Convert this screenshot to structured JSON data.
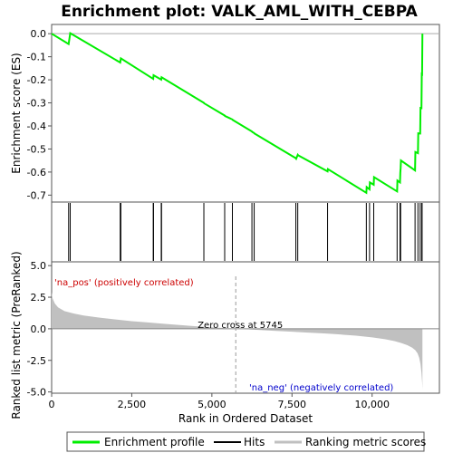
{
  "chart_data": {
    "type": "line",
    "title": "Enrichment plot: VALK_AML_WITH_CEBPA",
    "top_panel": {
      "ylabel": "Enrichment score (ES)",
      "ylim": [
        -0.73,
        0.04
      ],
      "yticks": [
        0.0,
        -0.1,
        -0.2,
        -0.3,
        -0.4,
        -0.5,
        -0.6,
        -0.7
      ],
      "ytick_labels": [
        "0.0",
        "-0.1",
        "-0.2",
        "-0.3",
        "-0.4",
        "-0.5",
        "-0.6",
        "-0.7"
      ],
      "series_color": "#00ee00",
      "es_profile": {
        "x": [
          0,
          530,
          580,
          2140,
          2160,
          3170,
          3180,
          3420,
          3430,
          4750,
          4760,
          5400,
          5410,
          5640,
          5650,
          6250,
          6260,
          6320,
          6330,
          7620,
          7630,
          7680,
          7690,
          8610,
          8620,
          9820,
          9830,
          9920,
          9930,
          10050,
          10060,
          10780,
          10790,
          10870,
          10880,
          10890,
          10900,
          11340,
          11350,
          11430,
          11440,
          11500,
          11510,
          11540,
          11550,
          11560,
          11570
        ],
        "y": [
          0.0,
          -0.045,
          0.002,
          -0.125,
          -0.107,
          -0.196,
          -0.18,
          -0.199,
          -0.189,
          -0.3,
          -0.302,
          -0.355,
          -0.357,
          -0.372,
          -0.374,
          -0.424,
          -0.426,
          -0.431,
          -0.433,
          -0.54,
          -0.542,
          -0.525,
          -0.527,
          -0.597,
          -0.587,
          -0.69,
          -0.665,
          -0.675,
          -0.645,
          -0.655,
          -0.622,
          -0.684,
          -0.637,
          -0.645,
          -0.603,
          -0.583,
          -0.55,
          -0.593,
          -0.513,
          -0.518,
          -0.432,
          -0.433,
          -0.322,
          -0.323,
          -0.175,
          -0.176,
          0.0
        ]
      }
    },
    "hits": [
      530,
      580,
      2140,
      2160,
      3170,
      3180,
      3420,
      3430,
      4750,
      5400,
      5640,
      6250,
      6320,
      7620,
      7680,
      8610,
      9820,
      9920,
      10050,
      10780,
      10870,
      10890,
      11340,
      11430,
      11500,
      11550,
      11560
    ],
    "color_bar": {
      "pos_label": "'na_pos' (positively correlated)",
      "neg_label": "'na_neg' (negatively correlated)",
      "segments": [
        {
          "x0": 0,
          "x1": 400,
          "color": "#ee1c2e"
        },
        {
          "x0": 400,
          "x1": 2150,
          "color": "#f24e5a"
        },
        {
          "x0": 2150,
          "x1": 3000,
          "color": "#f47a8a"
        },
        {
          "x0": 3000,
          "x1": 4100,
          "color": "#f8a2b2"
        },
        {
          "x0": 4100,
          "x1": 5600,
          "color": "#fbc6dc"
        },
        {
          "x0": 5600,
          "x1": 6400,
          "color": "#f3e7f3"
        },
        {
          "x0": 6400,
          "x1": 7300,
          "color": "#dcdcf3"
        },
        {
          "x0": 7300,
          "x1": 8500,
          "color": "#bcbcee"
        },
        {
          "x0": 8500,
          "x1": 9400,
          "color": "#8a8ae6"
        },
        {
          "x0": 9400,
          "x1": 11000,
          "color": "#5a5ad8"
        },
        {
          "x0": 11000,
          "x1": 11580,
          "color": "#2a2ac2"
        }
      ]
    },
    "bottom_panel": {
      "ylabel": "Ranked list metric (PreRanked)",
      "xlabel": "Rank in Ordered Dataset",
      "ylim": [
        -5.1,
        5.3
      ],
      "yticks": [
        5.0,
        2.5,
        0.0,
        -2.5,
        -5.0
      ],
      "ytick_labels": [
        "5.0",
        "2.5",
        "0.0",
        "-2.5",
        "-5.0"
      ],
      "xlim": [
        0,
        12100
      ],
      "xticks": [
        0,
        2500,
        5000,
        7500,
        10000
      ],
      "xtick_labels": [
        "0",
        "2,500",
        "5,000",
        "7,500",
        "10,000"
      ],
      "zero_cross": 5745,
      "zero_cross_label": "Zero cross at 5745",
      "metric": {
        "x": [
          0,
          30,
          100,
          200,
          400,
          700,
          1000,
          1500,
          2000,
          2500,
          3000,
          3500,
          4000,
          4500,
          5000,
          5500,
          5745,
          6000,
          6500,
          7000,
          7500,
          8000,
          8500,
          9000,
          9500,
          10000,
          10400,
          10700,
          10900,
          11100,
          11250,
          11350,
          11420,
          11470,
          11510,
          11540,
          11560,
          11570
        ],
        "y": [
          2.9,
          2.4,
          2.0,
          1.7,
          1.4,
          1.2,
          1.05,
          0.88,
          0.74,
          0.6,
          0.5,
          0.4,
          0.3,
          0.2,
          0.12,
          0.04,
          0.0,
          -0.03,
          -0.1,
          -0.17,
          -0.23,
          -0.3,
          -0.37,
          -0.45,
          -0.55,
          -0.68,
          -0.82,
          -0.98,
          -1.12,
          -1.3,
          -1.5,
          -1.7,
          -1.95,
          -2.3,
          -2.8,
          -3.5,
          -4.2,
          -4.8
        ]
      }
    },
    "legend": {
      "placement": "bottom",
      "entries": [
        {
          "label": "Enrichment profile",
          "color": "#00ee00"
        },
        {
          "label": "Hits",
          "color": "#000000"
        },
        {
          "label": "Ranking metric scores",
          "color": "#c0c0c0"
        }
      ]
    }
  }
}
